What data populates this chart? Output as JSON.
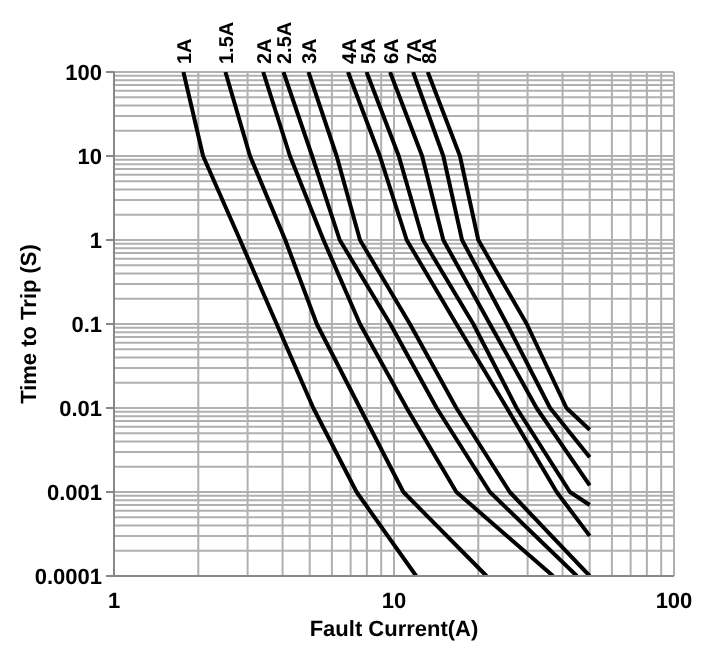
{
  "chart_data": {
    "type": "line",
    "xlabel": "Fault Current(A)",
    "ylabel": "Time to Trip (S)",
    "log": "xy",
    "grid": true,
    "marker": "none",
    "line_style": "solid",
    "xlim": [
      1,
      100
    ],
    "xticks": [
      1,
      10,
      100
    ],
    "ylim": [
      0.0001,
      100
    ],
    "yticks": [
      0.0001,
      0.001,
      0.01,
      0.1,
      1,
      10,
      100
    ],
    "series": [
      {
        "name": "1A",
        "color": "#000000",
        "x": [
          1.77,
          2.08,
          2.82,
          3.81,
          5.15,
          7.35,
          12
        ],
        "values": [
          100,
          10,
          1,
          0.1,
          0.01,
          0.001,
          0.0001
        ]
      },
      {
        "name": "1.5A",
        "color": "#000000",
        "x": [
          2.5,
          3.06,
          4.09,
          5.3,
          7.56,
          10.8,
          21.4
        ],
        "values": [
          100,
          10,
          1,
          0.1,
          0.01,
          0.001,
          0.0001
        ]
      },
      {
        "name": "2A",
        "color": "#000000",
        "x": [
          3.41,
          4.25,
          5.6,
          7.56,
          11.1,
          16.7,
          37
        ],
        "values": [
          100,
          10,
          1,
          0.1,
          0.01,
          0.001,
          0.0001
        ]
      },
      {
        "name": "2.5A",
        "color": "#000000",
        "x": [
          4.03,
          5.1,
          6.4,
          9.7,
          14.2,
          22,
          45
        ],
        "values": [
          100,
          10,
          1,
          0.1,
          0.01,
          0.001,
          0.0001
        ]
      },
      {
        "name": "3A",
        "color": "#000000",
        "x": [
          4.95,
          6.24,
          7.56,
          11.4,
          16.7,
          25.9,
          50
        ],
        "values": [
          100,
          10,
          1,
          0.1,
          0.01,
          0.001,
          0.0001
        ]
      },
      {
        "name": "4A",
        "color": "#000000",
        "x": [
          6.85,
          8.9,
          11.1,
          16.7,
          25.3,
          38.1,
          50
        ],
        "values": [
          100,
          10,
          1,
          0.1,
          0.01,
          0.001,
          0.0003
        ]
      },
      {
        "name": "5A",
        "color": "#000000",
        "x": [
          7.98,
          10.4,
          12.7,
          19.2,
          27.4,
          42.5,
          50
        ],
        "values": [
          100,
          10,
          1,
          0.1,
          0.01,
          0.001,
          0.0007
        ]
      },
      {
        "name": "6A",
        "color": "#000000",
        "x": [
          9.68,
          12.6,
          15,
          22,
          32.3,
          50
        ],
        "values": [
          100,
          10,
          1,
          0.1,
          0.01,
          0.0012
        ]
      },
      {
        "name": "7A",
        "color": "#000000",
        "x": [
          11.7,
          15,
          17.5,
          25.3,
          36.1,
          50
        ],
        "values": [
          100,
          10,
          1,
          0.1,
          0.01,
          0.0026
        ]
      },
      {
        "name": "8A",
        "color": "#000000",
        "x": [
          13.2,
          17.2,
          20,
          29.8,
          41.3,
          50
        ],
        "values": [
          100,
          10,
          1,
          0.1,
          0.01,
          0.0055
        ]
      }
    ]
  }
}
